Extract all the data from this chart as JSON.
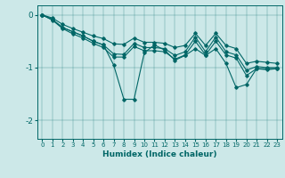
{
  "xlabel": "Humidex (Indice chaleur)",
  "bg_color": "#cce8e8",
  "line_color": "#006666",
  "xlim": [
    -0.5,
    23.5
  ],
  "ylim": [
    -2.35,
    0.18
  ],
  "yticks": [
    0,
    -1,
    -2
  ],
  "xticks": [
    0,
    1,
    2,
    3,
    4,
    5,
    6,
    7,
    8,
    9,
    10,
    11,
    12,
    13,
    14,
    15,
    16,
    17,
    18,
    19,
    20,
    21,
    22,
    23
  ],
  "line_upper": [
    0.0,
    -0.06,
    -0.18,
    -0.26,
    -0.33,
    -0.4,
    -0.45,
    -0.55,
    -0.56,
    -0.44,
    -0.52,
    -0.52,
    -0.54,
    -0.62,
    -0.58,
    -0.35,
    -0.58,
    -0.35,
    -0.58,
    -0.64,
    -0.92,
    -0.88,
    -0.9,
    -0.92
  ],
  "line_mid_upper": [
    0.0,
    -0.09,
    -0.24,
    -0.32,
    -0.4,
    -0.5,
    -0.57,
    -0.74,
    -0.75,
    -0.54,
    -0.62,
    -0.62,
    -0.64,
    -0.77,
    -0.7,
    -0.42,
    -0.7,
    -0.42,
    -0.7,
    -0.76,
    -1.05,
    -0.98,
    -1.0,
    -1.0
  ],
  "line_mid_lower": [
    0.0,
    -0.1,
    -0.26,
    -0.36,
    -0.44,
    -0.54,
    -0.62,
    -0.8,
    -0.8,
    -0.6,
    -0.68,
    -0.68,
    -0.7,
    -0.84,
    -0.76,
    -0.5,
    -0.76,
    -0.5,
    -0.76,
    -0.82,
    -1.15,
    -1.02,
    -1.04,
    -1.02
  ],
  "line_zigzag": [
    0.0,
    -0.09,
    -0.24,
    -0.32,
    -0.4,
    -0.5,
    -0.57,
    -0.95,
    -1.6,
    -1.6,
    -0.72,
    -0.57,
    -0.67,
    -0.86,
    -0.77,
    -0.64,
    -0.77,
    -0.64,
    -0.92,
    -1.38,
    -1.32,
    -1.02,
    -1.02,
    -1.02
  ]
}
